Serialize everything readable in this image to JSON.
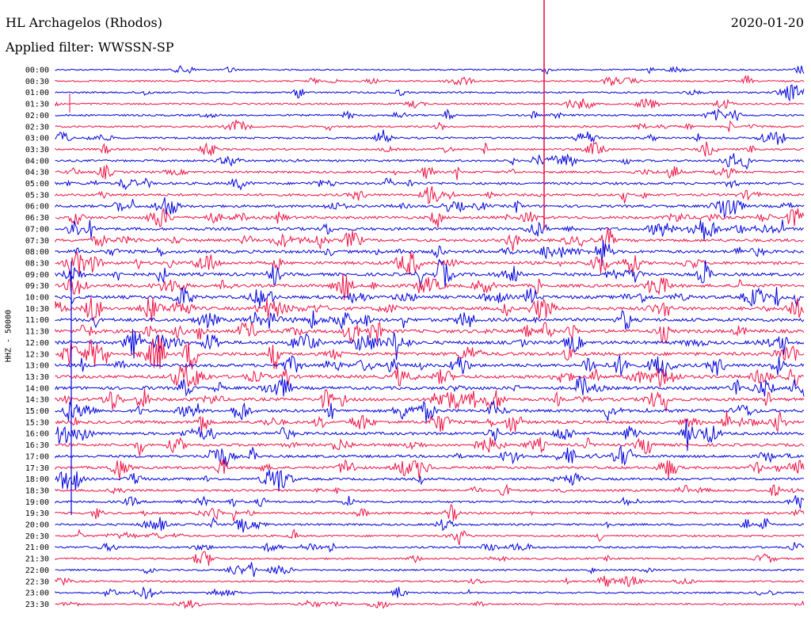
{
  "header": {
    "station": "HL Archagelos (Rhodos)",
    "date": "2020-01-20",
    "filter": "Applied filter: WWSSN-SP"
  },
  "chart_data": {
    "type": "line",
    "title": "HL Archagelos (Rhodos)",
    "ylabel": "HHZ - 50000",
    "row_labels": [
      "00:00",
      "00:30",
      "01:00",
      "01:30",
      "02:00",
      "02:30",
      "03:00",
      "03:30",
      "04:00",
      "04:30",
      "05:00",
      "05:30",
      "06:00",
      "06:30",
      "07:00",
      "07:30",
      "08:00",
      "08:30",
      "09:00",
      "09:30",
      "10:00",
      "10:30",
      "11:00",
      "11:30",
      "12:00",
      "12:30",
      "13:00",
      "13:30",
      "14:00",
      "14:30",
      "15:00",
      "15:30",
      "16:00",
      "16:30",
      "17:00",
      "17:30",
      "18:00",
      "18:30",
      "19:00",
      "19:30",
      "20:00",
      "20:30",
      "21:00",
      "21:30",
      "22:00",
      "22:30",
      "23:00",
      "23:30"
    ],
    "row_colors": [
      "#0000dd",
      "#ee1144"
    ],
    "activity_levels": [
      0.2,
      0.25,
      0.3,
      0.3,
      0.35,
      0.35,
      0.4,
      0.4,
      0.45,
      0.5,
      0.6,
      0.6,
      0.7,
      0.75,
      0.8,
      0.8,
      0.85,
      0.85,
      0.9,
      0.9,
      0.95,
      0.95,
      1.0,
      1.0,
      1.0,
      1.0,
      0.95,
      0.95,
      0.9,
      0.9,
      0.85,
      0.85,
      0.8,
      0.75,
      0.7,
      0.65,
      0.6,
      0.55,
      0.5,
      0.5,
      0.45,
      0.4,
      0.4,
      0.35,
      0.3,
      0.3,
      0.3,
      0.25
    ],
    "grid": false
  }
}
